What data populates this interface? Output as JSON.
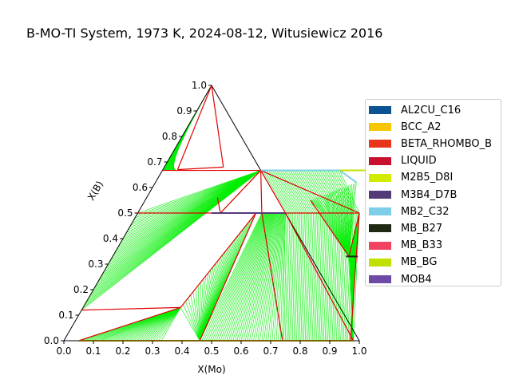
{
  "chart_data": {
    "type": "ternary",
    "title": "B-MO-TI System, 1973 K, 2024-08-12, Witusiewicz 2016",
    "xlabel": "X(Mo)",
    "ylabel": "X(B)",
    "xlim": [
      0,
      1
    ],
    "ylim": [
      0,
      1
    ],
    "x_ticks": [
      "0.0",
      "0.1",
      "0.2",
      "0.3",
      "0.4",
      "0.5",
      "0.6",
      "0.7",
      "0.8",
      "0.9",
      "1.0"
    ],
    "y_ticks": [
      "0.0",
      "0.1",
      "0.2",
      "0.3",
      "0.4",
      "0.5",
      "0.6",
      "0.7",
      "0.8",
      "0.9",
      "1.0"
    ],
    "legend_position": "right",
    "legend": [
      {
        "label": "AL2CU_C16",
        "color": "#0b5394"
      },
      {
        "label": "BCC_A2",
        "color": "#f6c700"
      },
      {
        "label": "BETA_RHOMBO_B",
        "color": "#e8351a"
      },
      {
        "label": "LIQUID",
        "color": "#c8102e"
      },
      {
        "label": "M2B5_D8I",
        "color": "#d2ec00"
      },
      {
        "label": "M3B4_D7B",
        "color": "#553a7a"
      },
      {
        "label": "MB2_C32",
        "color": "#7dcfe9"
      },
      {
        "label": "MB_B27",
        "color": "#1e2a14"
      },
      {
        "label": "MB_B33",
        "color": "#f2425f"
      },
      {
        "label": "MB_BG",
        "color": "#c2e000"
      },
      {
        "label": "MOB4",
        "color": "#6d4aa5"
      }
    ],
    "phase_boundaries": [
      [
        [
          0.0,
          0.667
        ],
        [
          0.333,
          0.667
        ]
      ],
      [
        [
          0.0,
          0.5
        ],
        [
          0.5,
          0.5
        ]
      ],
      [
        [
          0.5,
          0.5
        ],
        [
          0.75,
          0.5
        ]
      ],
      [
        [
          0.0,
          0.12
        ],
        [
          0.33,
          0.13
        ]
      ],
      [
        [
          0.33,
          0.13
        ],
        [
          0.4,
          0.5
        ]
      ],
      [
        [
          0.33,
          0.13
        ],
        [
          0.05,
          0.0
        ]
      ],
      [
        [
          0.4,
          0.5
        ],
        [
          0.46,
          0.0
        ]
      ],
      [
        [
          0.333,
          0.667
        ],
        [
          0.42,
          0.5
        ]
      ],
      [
        [
          0.42,
          0.5
        ],
        [
          0.74,
          0.0
        ]
      ],
      [
        [
          0.333,
          0.667
        ],
        [
          0.75,
          0.5
        ]
      ],
      [
        [
          0.333,
          0.667
        ],
        [
          0.5,
          0.5
        ]
      ],
      [
        [
          0.5,
          0.5
        ],
        [
          0.98,
          0.0
        ]
      ],
      [
        [
          0.75,
          0.5
        ],
        [
          0.97,
          0.0
        ]
      ],
      [
        [
          0.75,
          0.5
        ],
        [
          0.8,
          0.33
        ]
      ],
      [
        [
          0.333,
          0.667
        ],
        [
          0.28,
          0.5
        ]
      ],
      [
        [
          0.28,
          0.5
        ],
        [
          0.24,
          0.56
        ]
      ],
      [
        [
          0.0,
          1.0
        ],
        [
          0.05,
          0.67
        ]
      ],
      [
        [
          0.05,
          0.67
        ],
        [
          0.2,
          0.68
        ]
      ],
      [
        [
          0.2,
          0.68
        ],
        [
          0.0,
          1.0
        ]
      ],
      [
        [
          0.56,
          0.55
        ],
        [
          0.8,
          0.33
        ]
      ]
    ],
    "single_phase_segments": [
      {
        "phase": "MB2_C32",
        "points": [
          [
            0.333,
            0.667
          ],
          [
            0.6,
            0.667
          ],
          [
            0.68,
            0.62
          ]
        ]
      },
      {
        "phase": "MB_BG",
        "points": [
          [
            0.6,
            0.667
          ],
          [
            0.7,
            0.667
          ]
        ]
      },
      {
        "phase": "MB_B27",
        "points": [
          [
            0.79,
            0.33
          ],
          [
            0.83,
            0.33
          ]
        ]
      },
      {
        "phase": "M3B4_D7B",
        "points": [
          [
            0.25,
            0.5
          ],
          [
            0.5,
            0.5
          ]
        ]
      },
      {
        "phase": "BCC_A2",
        "points": [
          [
            0.05,
            0.0
          ],
          [
            0.98,
            0.0
          ]
        ]
      }
    ]
  }
}
